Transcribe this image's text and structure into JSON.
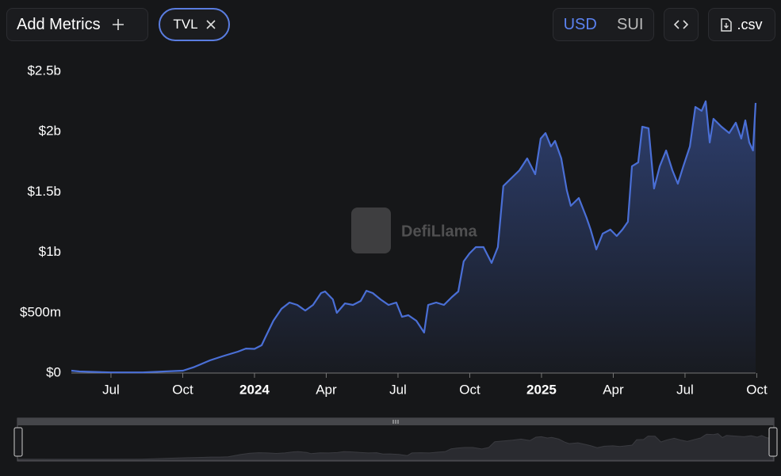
{
  "ui": {
    "add_metrics": "Add Metrics",
    "currencies": [
      "USD",
      "SUI"
    ],
    "csv": ".csv",
    "watermark": "DefiLlama"
  },
  "chart_data": {
    "type": "area",
    "x": [
      2023.362,
      2023.39,
      2023.5,
      2023.61,
      2023.751,
      2023.79,
      2023.845,
      2023.887,
      2023.942,
      2023.97,
      2024.0,
      2024.025,
      2024.039,
      2024.066,
      2024.094,
      2024.122,
      2024.149,
      2024.177,
      2024.204,
      2024.232,
      2024.246,
      2024.273,
      2024.287,
      2024.315,
      2024.343,
      2024.37,
      2024.39,
      2024.412,
      2024.439,
      2024.467,
      2024.494,
      2024.514,
      2024.536,
      2024.564,
      2024.591,
      2024.605,
      2024.633,
      2024.66,
      2024.688,
      2024.71,
      2024.729,
      2024.749,
      2024.771,
      2024.798,
      2024.826,
      2024.848,
      2024.867,
      2024.895,
      2024.923,
      2024.95,
      2024.978,
      2024.997,
      2025.014,
      2025.033,
      2025.047,
      2025.069,
      2025.088,
      2025.102,
      2025.13,
      2025.157,
      2025.171,
      2025.191,
      2025.213,
      2025.24,
      2025.262,
      2025.282,
      2025.301,
      2025.315,
      2025.337,
      2025.351,
      2025.373,
      2025.392,
      2025.412,
      2025.434,
      2025.456,
      2025.475,
      2025.494,
      2025.517,
      2025.536,
      2025.558,
      2025.572,
      2025.586,
      2025.599,
      2025.627,
      2025.654,
      2025.677,
      2025.696,
      2025.71,
      2025.724,
      2025.737,
      2025.746
    ],
    "series": [
      {
        "name": "TVL",
        "color": "#4a6fd6",
        "values": [
          20000000,
          13000000,
          5000000,
          5000000,
          20000000,
          50000000,
          105000000,
          138000000,
          177000000,
          203000000,
          200000000,
          230000000,
          302000000,
          433000000,
          532000000,
          584000000,
          564000000,
          518000000,
          564000000,
          663000000,
          676000000,
          610000000,
          499000000,
          577000000,
          564000000,
          597000000,
          682000000,
          663000000,
          610000000,
          564000000,
          584000000,
          466000000,
          479000000,
          433000000,
          335000000,
          564000000,
          584000000,
          564000000,
          630000000,
          676000000,
          925000000,
          991000000,
          1043000000,
          1043000000,
          912000000,
          1043000000,
          1549000000,
          1614000000,
          1680000000,
          1778000000,
          1647000000,
          1942000000,
          1988000000,
          1877000000,
          1923000000,
          1778000000,
          1516000000,
          1385000000,
          1450000000,
          1286000000,
          1188000000,
          1024000000,
          1155000000,
          1188000000,
          1135000000,
          1188000000,
          1253000000,
          1713000000,
          1745000000,
          2041000000,
          2028000000,
          1529000000,
          1713000000,
          1844000000,
          1680000000,
          1568000000,
          1713000000,
          1877000000,
          2205000000,
          2172000000,
          2251000000,
          1910000000,
          2106000000,
          2041000000,
          1988000000,
          2074000000,
          1942000000,
          2093000000,
          1910000000,
          1844000000,
          2238000000
        ]
      }
    ],
    "xlim": [
      2023.362,
      2025.746
    ],
    "xticks": [
      {
        "value": 2023.5,
        "label": "Jul"
      },
      {
        "value": 2023.75,
        "label": "Oct"
      },
      2024,
      {
        "value": 2024.25,
        "label": "Apr"
      },
      {
        "value": 2024.5,
        "label": "Jul"
      },
      {
        "value": 2024.75,
        "label": "Oct"
      },
      2025,
      {
        "value": 2025.25,
        "label": "Apr"
      },
      {
        "value": 2025.5,
        "label": "Jul"
      },
      {
        "value": 2025.75,
        "label": "Oct"
      }
    ],
    "ylim": [
      0,
      2500000000
    ],
    "yticks": [
      {
        "value": 0,
        "label": "$0"
      },
      {
        "value": 500000000,
        "label": "$500m"
      },
      {
        "value": 1000000000,
        "label": "$1b"
      },
      {
        "value": 1500000000,
        "label": "$1.5b"
      },
      {
        "value": 2000000000,
        "label": "$2b"
      },
      {
        "value": 2500000000,
        "label": "$2.5b"
      }
    ],
    "grid": false
  }
}
